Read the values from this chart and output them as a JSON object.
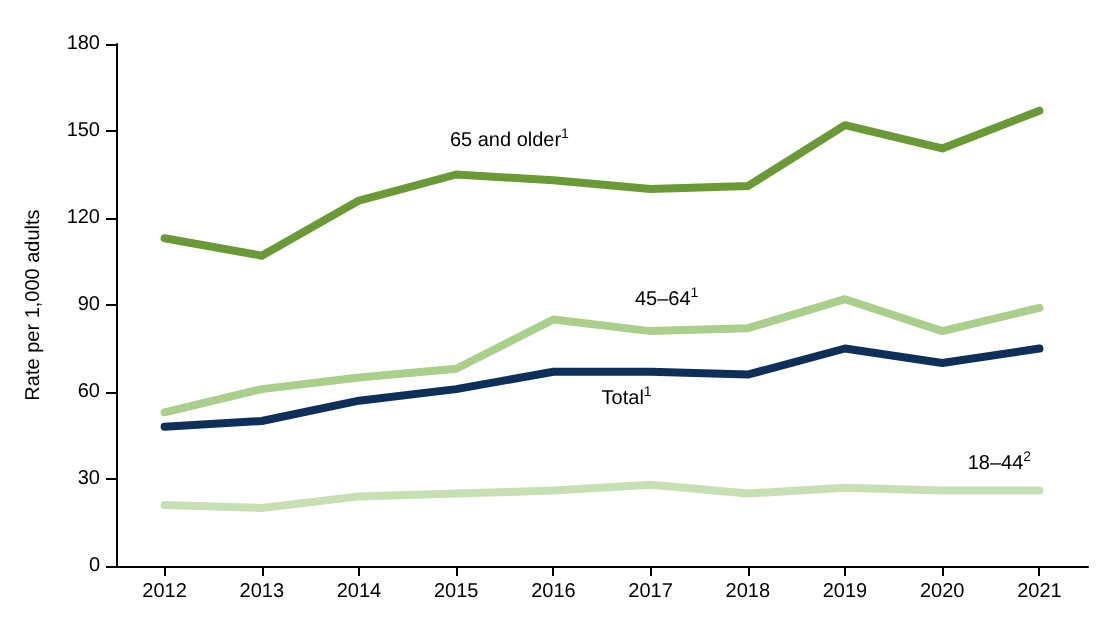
{
  "chart_data": {
    "type": "line",
    "ylabel": "Rate per 1,000 adults",
    "categories": [
      "2012",
      "2013",
      "2014",
      "2015",
      "2016",
      "2017",
      "2018",
      "2019",
      "2020",
      "2021"
    ],
    "series": [
      {
        "name": "65 and older$^{1}$",
        "color": "#6a9a35",
        "values": [
          113,
          107,
          126,
          135,
          133,
          130,
          131,
          152,
          144,
          157
        ]
      },
      {
        "name": "45–64$^{1}$",
        "color": "#a9cf8a",
        "values": [
          53,
          61,
          65,
          68,
          85,
          81,
          82,
          92,
          81,
          89
        ]
      },
      {
        "name": "Total$^{1}$",
        "color": "#0d2f5a",
        "values": [
          48,
          50,
          57,
          61,
          67,
          67,
          66,
          75,
          70,
          75
        ]
      },
      {
        "name": "18–44$^{2}$",
        "color": "#c6dfb3",
        "values": [
          21,
          20,
          24,
          25,
          26,
          28,
          25,
          27,
          26,
          26
        ]
      }
    ],
    "ylim": [
      0,
      180
    ],
    "yticks": [
      0,
      30,
      60,
      90,
      120,
      150,
      180
    ],
    "grid": false,
    "legend": false,
    "marker": "none",
    "line_style": "solid"
  }
}
